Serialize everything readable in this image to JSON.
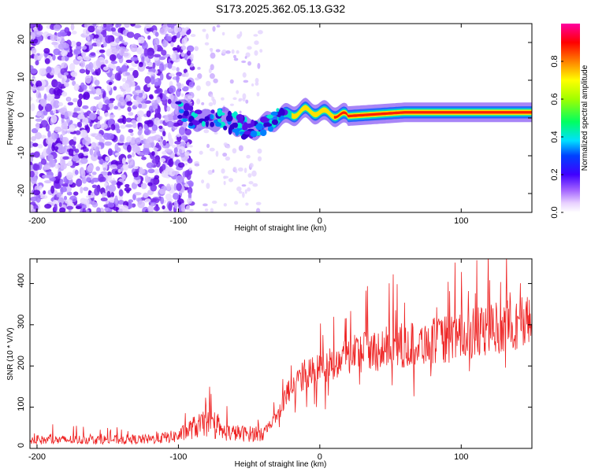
{
  "title": "S173.2025.362.05.13.G32",
  "colors": {
    "snr_line": "#ee2222",
    "background": "#ffffff",
    "axis": "#000000"
  },
  "chart_data": [
    {
      "type": "heatmap",
      "name": "spectrogram",
      "xlabel": "Height of straight line (km)",
      "ylabel": "Frequency (Hz)",
      "xlim": [
        -205,
        150
      ],
      "ylim": [
        -25,
        25
      ],
      "xticks": [
        -200,
        -100,
        0,
        100
      ],
      "yticks": [
        -20,
        -10,
        0,
        10,
        20
      ],
      "colorbar": {
        "label": "Normalized spectral amplitude",
        "range": [
          0,
          1
        ],
        "ticks": [
          0.0,
          0.2,
          0.4,
          0.6,
          0.8
        ],
        "colormap": "rainbow (white-violet-purple-blue-cyan-green-yellow-orange-red-magenta)"
      },
      "ridge_frequency_hz": [
        [
          -100,
          3
        ],
        [
          -90,
          0
        ],
        [
          -80,
          -1
        ],
        [
          -70,
          0
        ],
        [
          -60,
          -1.5
        ],
        [
          -50,
          -3
        ],
        [
          -40,
          -2
        ],
        [
          -30,
          0
        ],
        [
          -20,
          1
        ],
        [
          -10,
          2
        ],
        [
          0,
          1.5
        ],
        [
          10,
          1
        ],
        [
          20,
          0.5
        ],
        [
          40,
          1
        ],
        [
          60,
          1.5
        ],
        [
          100,
          1.5
        ],
        [
          150,
          1.5
        ]
      ],
      "noise_region_km": [
        -205,
        -100
      ]
    },
    {
      "type": "line",
      "name": "snr",
      "xlabel": "Height of straight line (km)",
      "ylabel": "SNR (10 * V/V)",
      "xlim": [
        -205,
        150
      ],
      "ylim": [
        0,
        460
      ],
      "xticks": [
        -200,
        -100,
        0,
        100
      ],
      "yticks": [
        0,
        100,
        200,
        300,
        400
      ],
      "series": [
        {
          "name": "SNR",
          "trend": [
            [
              -205,
              20
            ],
            [
              -120,
              22
            ],
            [
              -100,
              30
            ],
            [
              -90,
              50
            ],
            [
              -80,
              60
            ],
            [
              -70,
              40
            ],
            [
              -50,
              35
            ],
            [
              -40,
              40
            ],
            [
              -30,
              80
            ],
            [
              -25,
              120
            ],
            [
              -20,
              150
            ],
            [
              -10,
              180
            ],
            [
              0,
              190
            ],
            [
              10,
              210
            ],
            [
              20,
              230
            ],
            [
              40,
              240
            ],
            [
              60,
              250
            ],
            [
              80,
              260
            ],
            [
              100,
              270
            ],
            [
              120,
              290
            ],
            [
              150,
              310
            ]
          ]
        }
      ]
    }
  ]
}
